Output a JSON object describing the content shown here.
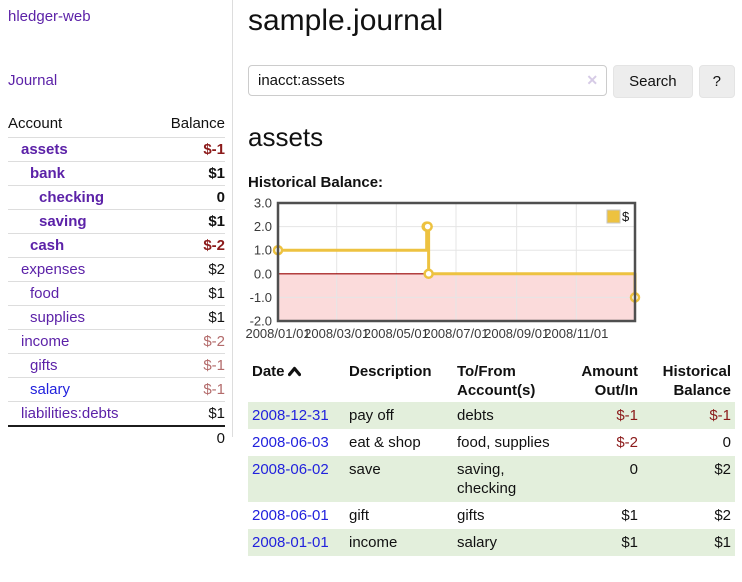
{
  "sidebar": {
    "brand": "hledger-web",
    "nav": {
      "journal": "Journal"
    },
    "headers": {
      "account": "Account",
      "balance": "Balance"
    },
    "accounts": [
      {
        "name": "assets",
        "balance": "$-1",
        "level": 0,
        "bold": true,
        "name_style": "purple",
        "bal_style": "neg-strong"
      },
      {
        "name": "bank",
        "balance": "$1",
        "level": 1,
        "bold": true,
        "name_style": "purple",
        "bal_style": "pos"
      },
      {
        "name": "checking",
        "balance": "0",
        "level": 2,
        "bold": true,
        "name_style": "purple",
        "bal_style": "pos"
      },
      {
        "name": "saving",
        "balance": "$1",
        "level": 2,
        "bold": true,
        "name_style": "purple",
        "bal_style": "pos"
      },
      {
        "name": "cash",
        "balance": "$-2",
        "level": 1,
        "bold": true,
        "name_style": "purple",
        "bal_style": "neg-strong"
      },
      {
        "name": "expenses",
        "balance": "$2",
        "level": 0,
        "bold": false,
        "name_style": "purple",
        "bal_style": "pos"
      },
      {
        "name": "food",
        "balance": "$1",
        "level": 1,
        "bold": false,
        "name_style": "purple",
        "bal_style": "pos"
      },
      {
        "name": "supplies",
        "balance": "$1",
        "level": 1,
        "bold": false,
        "name_style": "purple",
        "bal_style": "pos"
      },
      {
        "name": "income",
        "balance": "$-2",
        "level": 0,
        "bold": false,
        "name_style": "purple",
        "bal_style": "neg-soft"
      },
      {
        "name": "gifts",
        "balance": "$-1",
        "level": 1,
        "bold": false,
        "name_style": "purple",
        "bal_style": "neg-soft"
      },
      {
        "name": "salary",
        "balance": "$-1",
        "level": 1,
        "bold": false,
        "name_style": "blue",
        "bal_style": "neg-soft"
      },
      {
        "name": "liabilities:debts",
        "balance": "$1",
        "level": 0,
        "bold": false,
        "name_style": "purple",
        "bal_style": "pos"
      }
    ],
    "total": "0"
  },
  "header": {
    "title": "sample.journal"
  },
  "search": {
    "value": "inacct:assets",
    "clear_icon": "✕",
    "button": "Search",
    "help_button": "?"
  },
  "section": {
    "heading": "assets"
  },
  "chart_data": {
    "type": "line",
    "step": true,
    "title": "Historical Balance:",
    "series": [
      {
        "name": "$",
        "color": "#edc240",
        "points": [
          [
            "2008-01-01",
            1.0
          ],
          [
            "2008-06-01",
            2.0
          ],
          [
            "2008-06-02",
            2.0
          ],
          [
            "2008-06-03",
            0.0
          ],
          [
            "2008-12-31",
            -1.0
          ]
        ]
      }
    ],
    "xlim": [
      "2008-01-01",
      "2008-12-31"
    ],
    "ylim": [
      -2.0,
      3.0
    ],
    "x_ticks": [
      "2008/01/01",
      "2008/03/01",
      "2008/05/01",
      "2008/07/01",
      "2008/09/01",
      "2008/11/01"
    ],
    "y_ticks": [
      3.0,
      2.0,
      1.0,
      0.0,
      -1.0,
      -2.0
    ],
    "grid": true,
    "legend_position": "top-right",
    "negative_region_fill": "#fbdbdb",
    "zero_line_color": "#990000",
    "border_color": "#4f4f4f",
    "grid_color": "#e5e5e5"
  },
  "register": {
    "headers": {
      "date": "Date",
      "description": "Description",
      "tofrom_line1": "To/From",
      "tofrom_line2": "Account(s)",
      "amount_line1": "Amount",
      "amount_line2": "Out/In",
      "balance_line1": "Historical",
      "balance_line2": "Balance"
    },
    "rows": [
      {
        "date": "2008-12-31",
        "description": "pay off",
        "accounts": "debts",
        "amount": "$-1",
        "amount_neg": true,
        "balance": "$-1",
        "balance_neg": true,
        "stripe": true
      },
      {
        "date": "2008-06-03",
        "description": "eat & shop",
        "accounts": "food, supplies",
        "amount": "$-2",
        "amount_neg": true,
        "balance": "0",
        "balance_neg": false,
        "stripe": false
      },
      {
        "date": "2008-06-02",
        "description": "save",
        "accounts": "saving, checking",
        "amount": "0",
        "amount_neg": false,
        "balance": "$2",
        "balance_neg": false,
        "stripe": true
      },
      {
        "date": "2008-06-01",
        "description": "gift",
        "accounts": "gifts",
        "amount": "$1",
        "amount_neg": false,
        "balance": "$2",
        "balance_neg": false,
        "stripe": false
      },
      {
        "date": "2008-01-01",
        "description": "income",
        "accounts": "salary",
        "amount": "$1",
        "amount_neg": false,
        "balance": "$1",
        "balance_neg": false,
        "stripe": true
      }
    ]
  }
}
